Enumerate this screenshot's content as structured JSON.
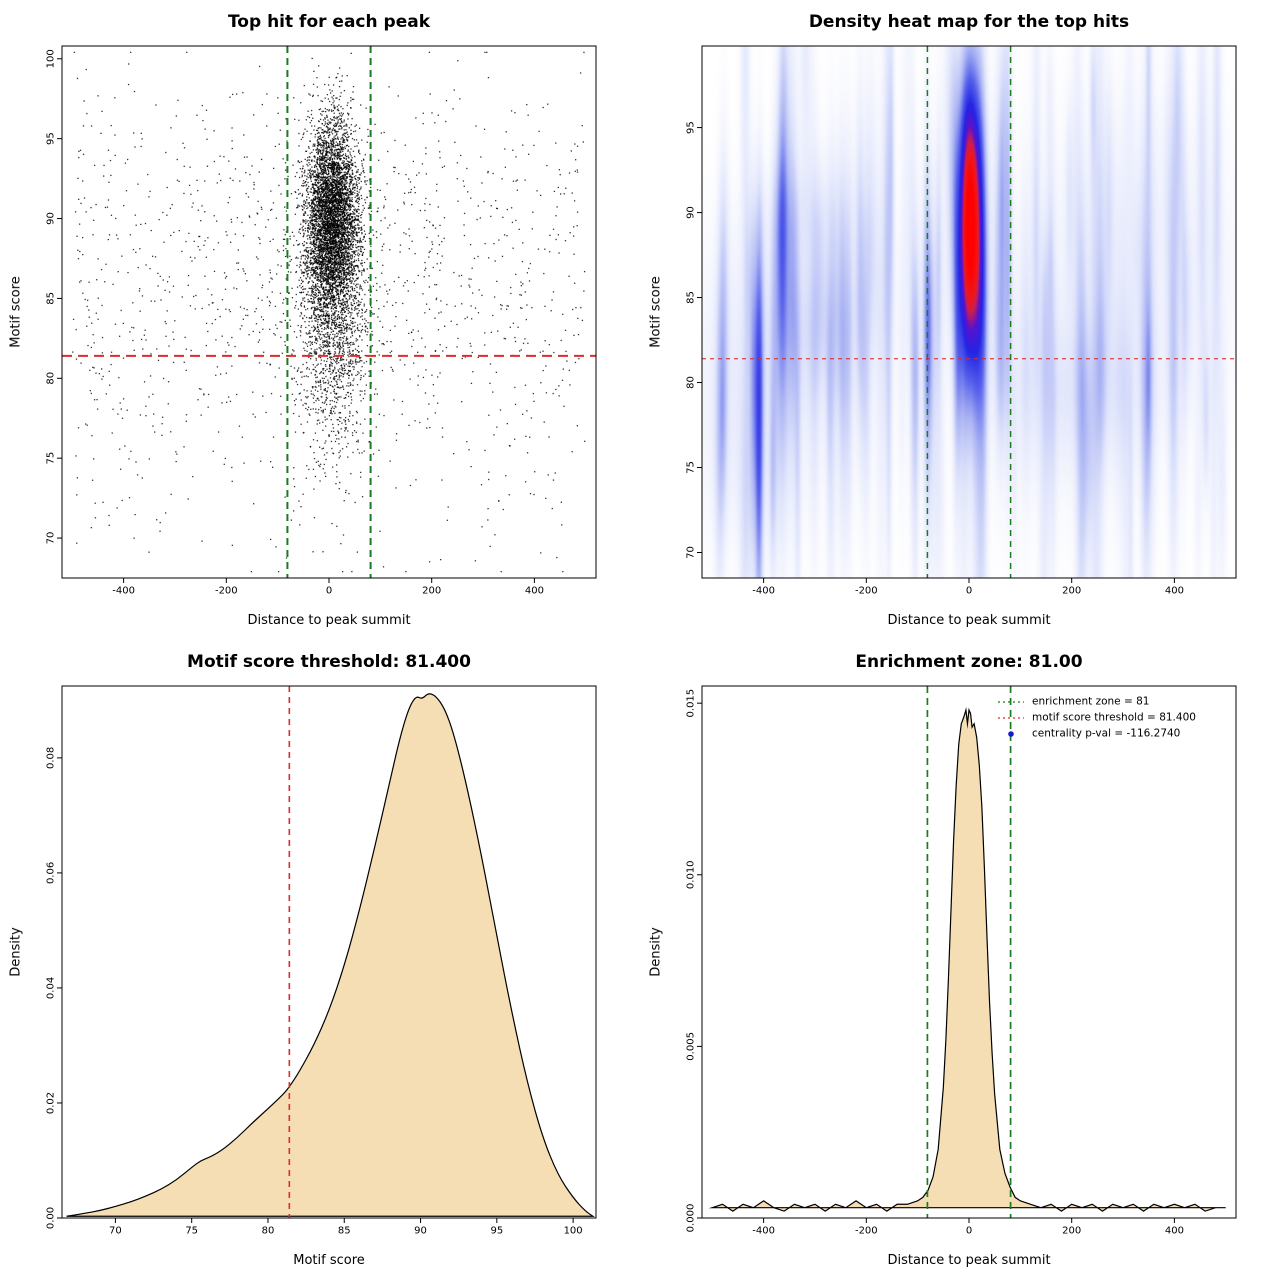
{
  "chart_data": [
    {
      "type": "scatter",
      "title": "Top hit for each peak",
      "xlabel": "Distance to peak summit",
      "ylabel": "Motif score",
      "xlim": [
        -520,
        520
      ],
      "ylim": [
        67.5,
        100.8
      ],
      "xticks": {
        "values": [
          -400,
          -200,
          0,
          200,
          400
        ],
        "labels": [
          "-400",
          "-200",
          "0",
          "200",
          "400"
        ]
      },
      "yticks": {
        "values": [
          70,
          75,
          80,
          85,
          90,
          95,
          100
        ],
        "labels": [
          "70",
          "75",
          "80",
          "85",
          "90",
          "95",
          "100"
        ]
      },
      "points_style": {
        "color": "#000000",
        "size": 1.3,
        "alpha": 0.8
      },
      "seed": 42,
      "clusters": [
        {
          "n": 5200,
          "x_mean": 6,
          "x_sd": 26,
          "y_mean": 90.0,
          "y_sd": 3.1
        },
        {
          "n": 1500,
          "x_mean": 6,
          "x_sd": 34,
          "y_mean": 83.5,
          "y_sd": 4.2
        },
        {
          "n": 260,
          "x_mean": 0,
          "x_sd": 150,
          "y_mean": 88,
          "y_sd": 4.5
        }
      ],
      "background": [
        {
          "n": 950,
          "x_min": -500,
          "x_max": 500,
          "y_mean": 85,
          "y_sd": 6.5
        },
        {
          "n": 200,
          "x_min": -500,
          "x_max": 500,
          "y_min": 68,
          "y_max": 98
        }
      ],
      "vlines": [
        {
          "x": -81,
          "color": "#1e7a1e",
          "width": 2,
          "dash": [
            7,
            5
          ]
        },
        {
          "x": 81,
          "color": "#1e7a1e",
          "width": 2,
          "dash": [
            7,
            5
          ]
        }
      ],
      "hlines": [
        {
          "y": 81.4,
          "color": "#dd2c2c",
          "width": 2,
          "dash": [
            10,
            6
          ]
        }
      ]
    },
    {
      "type": "heatmap",
      "title": "Density heat map for the top hits",
      "xlabel": "Distance to peak summit",
      "ylabel": "Motif score",
      "xlim": [
        -520,
        520
      ],
      "ylim": [
        68.5,
        99.8
      ],
      "xticks": {
        "values": [
          -400,
          -200,
          0,
          200,
          400
        ],
        "labels": [
          "-400",
          "-200",
          "0",
          "200",
          "400"
        ]
      },
      "yticks": {
        "values": [
          70,
          75,
          80,
          85,
          90,
          95
        ],
        "labels": [
          "70",
          "75",
          "80",
          "85",
          "90",
          "95"
        ]
      },
      "kernel": {
        "x_center": 2,
        "y_center": 89.6,
        "x_sd": 16,
        "y_sd": 6
      },
      "noise": [
        {
          "seed": 11,
          "count": 140,
          "x_min": -500,
          "x_max": 500,
          "y_mean": 84,
          "y_sd": 7.5,
          "x_sd_min": 4,
          "x_sd_max": 9,
          "y_sd_min": 3,
          "y_sd_max": 11,
          "amp_min": 0.03,
          "amp_max": 0.11
        },
        {
          "seed": 23,
          "count": 20,
          "x_min": -480,
          "x_max": 480,
          "y_mean": 83,
          "y_sd": 6,
          "x_sd_min": 40,
          "x_sd_max": 150,
          "y_sd_min": 2,
          "y_sd_max": 6,
          "amp_min": 0.015,
          "amp_max": 0.04
        }
      ],
      "colormap": [
        [
          0.0,
          "#ffffff"
        ],
        [
          0.03,
          "#f8f9fe"
        ],
        [
          0.12,
          "#dfe4fb"
        ],
        [
          0.25,
          "#aab3f3"
        ],
        [
          0.4,
          "#5560ea"
        ],
        [
          0.55,
          "#2424e4"
        ],
        [
          0.68,
          "#5712cd"
        ],
        [
          0.78,
          "#c81e52"
        ],
        [
          0.86,
          "#f01616"
        ],
        [
          1.0,
          "#ff0000"
        ]
      ],
      "vlines": [
        {
          "x": -81,
          "color": "#1e7a1e",
          "width": 1.5,
          "dash": [
            6,
            5
          ]
        },
        {
          "x": 81,
          "color": "#1e7a1e",
          "width": 1.5,
          "dash": [
            6,
            5
          ]
        }
      ],
      "hlines": [
        {
          "y": 81.4,
          "color": "#dd2c2c",
          "width": 1.1,
          "dash": [
            4,
            4
          ]
        }
      ]
    },
    {
      "type": "area",
      "title": "Motif score threshold: 81.400",
      "xlabel": "Motif score",
      "ylabel": "Density",
      "xlim": [
        66.5,
        101.5
      ],
      "ylim": [
        0,
        0.0925
      ],
      "xticks": {
        "values": [
          70,
          75,
          80,
          85,
          90,
          95,
          100
        ],
        "labels": [
          "70",
          "75",
          "80",
          "85",
          "90",
          "95",
          "100"
        ]
      },
      "yticks": {
        "values": [
          0,
          0.02,
          0.04,
          0.06,
          0.08
        ],
        "labels": [
          "0.00",
          "0.02",
          "0.04",
          "0.06",
          "0.08"
        ]
      },
      "fill": "#f5deb3",
      "stroke": "#000000",
      "smooth": true,
      "points": [
        [
          66.8,
          0.0003
        ],
        [
          68,
          0.0008
        ],
        [
          69,
          0.0013
        ],
        [
          70,
          0.002
        ],
        [
          71,
          0.0028
        ],
        [
          72,
          0.0038
        ],
        [
          73,
          0.005
        ],
        [
          74,
          0.0066
        ],
        [
          75,
          0.0088
        ],
        [
          75.6,
          0.01
        ],
        [
          76.2,
          0.0106
        ],
        [
          77,
          0.0118
        ],
        [
          78,
          0.014
        ],
        [
          79,
          0.0166
        ],
        [
          80,
          0.019
        ],
        [
          81,
          0.0215
        ],
        [
          81.4,
          0.0228
        ],
        [
          82,
          0.0252
        ],
        [
          83,
          0.03
        ],
        [
          84,
          0.036
        ],
        [
          85,
          0.0438
        ],
        [
          86,
          0.0535
        ],
        [
          87,
          0.0645
        ],
        [
          88,
          0.076
        ],
        [
          88.6,
          0.083
        ],
        [
          89.2,
          0.0885
        ],
        [
          89.7,
          0.0908
        ],
        [
          90.1,
          0.0902
        ],
        [
          90.5,
          0.0913
        ],
        [
          91,
          0.0908
        ],
        [
          91.6,
          0.0885
        ],
        [
          92.2,
          0.084
        ],
        [
          93,
          0.0755
        ],
        [
          94,
          0.063
        ],
        [
          95,
          0.049
        ],
        [
          96,
          0.0355
        ],
        [
          97,
          0.0235
        ],
        [
          98,
          0.014
        ],
        [
          99,
          0.0075
        ],
        [
          100,
          0.0035
        ],
        [
          100.8,
          0.0012
        ],
        [
          101.3,
          0.0003
        ]
      ],
      "vlines": [
        {
          "x": 81.4,
          "color": "#dd2c2c",
          "width": 1.6,
          "dash": [
            6,
            5
          ]
        }
      ]
    },
    {
      "type": "area",
      "title": "Enrichment zone: 81.00",
      "xlabel": "Distance to peak summit",
      "ylabel": "Density",
      "xlim": [
        -520,
        520
      ],
      "ylim": [
        0,
        0.0155
      ],
      "xticks": {
        "values": [
          -400,
          -200,
          0,
          200,
          400
        ],
        "labels": [
          "-400",
          "-200",
          "0",
          "200",
          "400"
        ]
      },
      "yticks": {
        "values": [
          0,
          0.005,
          0.01,
          0.015
        ],
        "labels": [
          "0.000",
          "0.005",
          "0.010",
          "0.015"
        ]
      },
      "fill": "#f5deb3",
      "stroke": "#000000",
      "smooth": false,
      "points": [
        [
          -500,
          0.0003
        ],
        [
          -480,
          0.0004
        ],
        [
          -460,
          0.0002
        ],
        [
          -440,
          0.0004
        ],
        [
          -420,
          0.0003
        ],
        [
          -400,
          0.0005
        ],
        [
          -380,
          0.0003
        ],
        [
          -360,
          0.0002
        ],
        [
          -340,
          0.0004
        ],
        [
          -320,
          0.0003
        ],
        [
          -300,
          0.0004
        ],
        [
          -280,
          0.0002
        ],
        [
          -260,
          0.0004
        ],
        [
          -240,
          0.0003
        ],
        [
          -220,
          0.0005
        ],
        [
          -200,
          0.0003
        ],
        [
          -180,
          0.0004
        ],
        [
          -160,
          0.0002
        ],
        [
          -140,
          0.0004
        ],
        [
          -120,
          0.0004
        ],
        [
          -100,
          0.0005
        ],
        [
          -90,
          0.0006
        ],
        [
          -80,
          0.0008
        ],
        [
          -70,
          0.0012
        ],
        [
          -60,
          0.002
        ],
        [
          -50,
          0.0038
        ],
        [
          -45,
          0.0052
        ],
        [
          -40,
          0.007
        ],
        [
          -35,
          0.009
        ],
        [
          -30,
          0.011
        ],
        [
          -25,
          0.0126
        ],
        [
          -20,
          0.0138
        ],
        [
          -15,
          0.0144
        ],
        [
          -10,
          0.0146
        ],
        [
          -6,
          0.0148
        ],
        [
          -3,
          0.0144
        ],
        [
          0,
          0.0148
        ],
        [
          3,
          0.0147
        ],
        [
          6,
          0.0143
        ],
        [
          10,
          0.0144
        ],
        [
          15,
          0.014
        ],
        [
          20,
          0.0132
        ],
        [
          25,
          0.012
        ],
        [
          30,
          0.0102
        ],
        [
          35,
          0.0082
        ],
        [
          40,
          0.0063
        ],
        [
          45,
          0.0048
        ],
        [
          50,
          0.0036
        ],
        [
          60,
          0.002
        ],
        [
          70,
          0.0013
        ],
        [
          80,
          0.0009
        ],
        [
          90,
          0.0006
        ],
        [
          100,
          0.0005
        ],
        [
          120,
          0.0004
        ],
        [
          140,
          0.0003
        ],
        [
          160,
          0.0004
        ],
        [
          180,
          0.0002
        ],
        [
          200,
          0.0004
        ],
        [
          220,
          0.0003
        ],
        [
          240,
          0.0004
        ],
        [
          260,
          0.0002
        ],
        [
          280,
          0.0004
        ],
        [
          300,
          0.0003
        ],
        [
          320,
          0.0004
        ],
        [
          340,
          0.0002
        ],
        [
          360,
          0.0004
        ],
        [
          380,
          0.0003
        ],
        [
          400,
          0.0004
        ],
        [
          420,
          0.0003
        ],
        [
          440,
          0.0004
        ],
        [
          460,
          0.0002
        ],
        [
          480,
          0.0003
        ],
        [
          500,
          0.0003
        ]
      ],
      "vlines": [
        {
          "x": -81,
          "color": "#1e7a1e",
          "width": 1.7,
          "dash": [
            7,
            5
          ]
        },
        {
          "x": 81,
          "color": "#1e7a1e",
          "width": 1.7,
          "dash": [
            7,
            5
          ]
        }
      ],
      "legend": {
        "entries": [
          {
            "type": "line",
            "color": "#1e7a1e",
            "label": "enrichment zone = 81"
          },
          {
            "type": "line",
            "color": "#dd2c2c",
            "label": "motif score threshold = 81.400"
          },
          {
            "type": "point",
            "color": "#1818cc",
            "label": "centrality p-val = -116.2740"
          }
        ]
      }
    }
  ]
}
